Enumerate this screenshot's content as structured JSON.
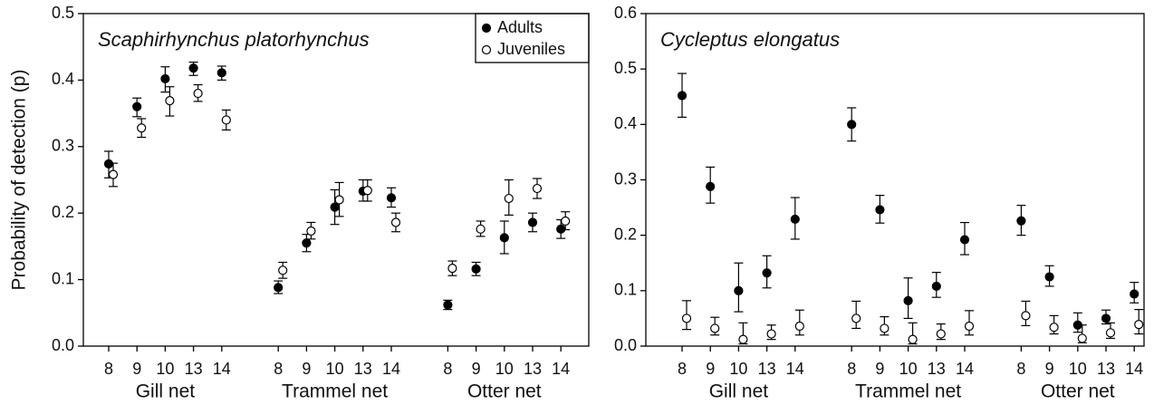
{
  "chart_data": [
    {
      "type": "scatter",
      "title": "Scaphirhynchus platorhynchus",
      "ylabel": "Probability of detection (p)",
      "categories": [
        "8",
        "9",
        "10",
        "13",
        "14",
        "8",
        "9",
        "10",
        "13",
        "14",
        "8",
        "9",
        "10",
        "13",
        "14"
      ],
      "groups": [
        "Gill net",
        "Trammel net",
        "Otter net"
      ],
      "ylim": [
        0,
        0.5
      ],
      "yticks": [
        {
          "value": 0,
          "label": "0.0"
        },
        0.1,
        0.2,
        0.3,
        0.4,
        0.5
      ],
      "legend": "upper right",
      "series": [
        {
          "name": "Adults",
          "marker": "filled",
          "color": "#000000",
          "values": [
            0.274,
            0.36,
            0.402,
            0.418,
            0.411,
            0.088,
            0.155,
            0.209,
            0.233,
            0.223,
            0.062,
            0.116,
            0.163,
            0.186,
            0.176
          ],
          "lower": [
            0.253,
            0.345,
            0.382,
            0.407,
            0.4,
            0.079,
            0.142,
            0.183,
            0.218,
            0.209,
            0.055,
            0.106,
            0.139,
            0.172,
            0.162
          ],
          "upper": [
            0.293,
            0.373,
            0.42,
            0.427,
            0.421,
            0.098,
            0.168,
            0.235,
            0.25,
            0.238,
            0.069,
            0.126,
            0.188,
            0.2,
            0.19
          ]
        },
        {
          "name": "Juveniles",
          "marker": "open",
          "color": "#000000",
          "values": [
            0.258,
            0.328,
            0.369,
            0.38,
            0.34,
            0.114,
            0.173,
            0.22,
            0.234,
            0.186,
            0.117,
            0.176,
            0.222,
            0.237,
            0.188
          ],
          "lower": [
            0.24,
            0.314,
            0.346,
            0.368,
            0.325,
            0.102,
            0.161,
            0.195,
            0.218,
            0.172,
            0.106,
            0.165,
            0.197,
            0.222,
            0.175
          ],
          "upper": [
            0.275,
            0.342,
            0.39,
            0.393,
            0.355,
            0.126,
            0.186,
            0.246,
            0.25,
            0.2,
            0.128,
            0.188,
            0.25,
            0.252,
            0.202
          ]
        }
      ]
    },
    {
      "type": "scatter",
      "title": "Cycleptus elongatus",
      "categories": [
        "8",
        "9",
        "10",
        "13",
        "14",
        "8",
        "9",
        "10",
        "13",
        "14",
        "8",
        "9",
        "10",
        "13",
        "14"
      ],
      "groups": [
        "Gill net",
        "Trammel net",
        "Otter net"
      ],
      "ylim": [
        0,
        0.6
      ],
      "yticks": [
        {
          "value": 0,
          "label": "0.0"
        },
        0.1,
        0.2,
        0.3,
        0.4,
        0.5,
        0.6
      ],
      "series": [
        {
          "marker": "filled",
          "color": "#000000",
          "values": [
            0.452,
            0.288,
            0.1,
            0.132,
            0.229,
            0.4,
            0.246,
            0.082,
            0.108,
            0.192,
            0.226,
            0.125,
            0.038,
            0.05,
            0.094
          ],
          "lower": [
            0.413,
            0.258,
            0.062,
            0.105,
            0.193,
            0.37,
            0.222,
            0.05,
            0.088,
            0.165,
            0.2,
            0.108,
            0.025,
            0.04,
            0.078
          ],
          "upper": [
            0.492,
            0.323,
            0.15,
            0.163,
            0.268,
            0.43,
            0.272,
            0.123,
            0.133,
            0.223,
            0.254,
            0.145,
            0.06,
            0.065,
            0.115
          ]
        },
        {
          "marker": "open",
          "color": "#000000",
          "values": [
            0.05,
            0.032,
            0.012,
            0.022,
            0.036,
            0.05,
            0.032,
            0.012,
            0.022,
            0.036,
            0.055,
            0.034,
            0.014,
            0.024,
            0.039
          ],
          "lower": [
            0.03,
            0.02,
            0.004,
            0.012,
            0.02,
            0.032,
            0.02,
            0.004,
            0.012,
            0.02,
            0.037,
            0.022,
            0.006,
            0.014,
            0.022
          ],
          "upper": [
            0.082,
            0.052,
            0.042,
            0.038,
            0.065,
            0.081,
            0.053,
            0.042,
            0.04,
            0.064,
            0.081,
            0.055,
            0.038,
            0.042,
            0.066
          ]
        }
      ]
    }
  ]
}
